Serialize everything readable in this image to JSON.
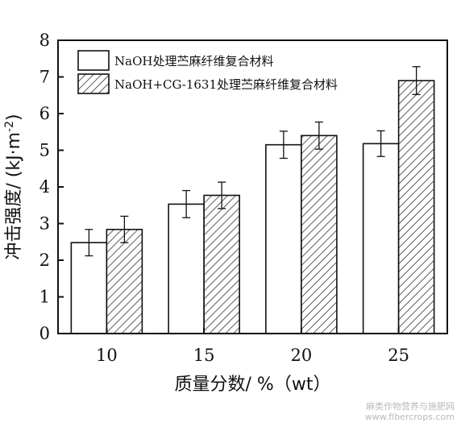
{
  "chart_data": {
    "type": "bar",
    "xlabel": "质量分数/ %（wt）",
    "ylabel": "冲击强度/ (kJ·m",
    "ylabel_sup": "-2",
    "ylabel_close": ")",
    "ylim": [
      0,
      8
    ],
    "yticks": [
      0,
      1,
      2,
      3,
      4,
      5,
      6,
      7,
      8
    ],
    "categories": [
      "10",
      "15",
      "20",
      "25"
    ],
    "legend_position": "top-left",
    "series": [
      {
        "name": "NaOH处理苎麻纤维复合材料",
        "fill": "plain",
        "values": [
          2.48,
          3.53,
          5.15,
          5.18
        ],
        "errors": [
          0.36,
          0.37,
          0.37,
          0.35
        ]
      },
      {
        "name": "NaOH+CG-1631处理苎麻纤维复合材料",
        "fill": "hatched",
        "values": [
          2.84,
          3.77,
          5.4,
          6.9
        ],
        "errors": [
          0.36,
          0.36,
          0.37,
          0.38
        ]
      }
    ]
  },
  "watermark": {
    "line1": "麻类作物营养与施肥网",
    "line2": "www.fibercrops.com"
  },
  "colors": {
    "axis": "#111111",
    "bar_fill": "#ffffff",
    "hatch": "#333333"
  }
}
